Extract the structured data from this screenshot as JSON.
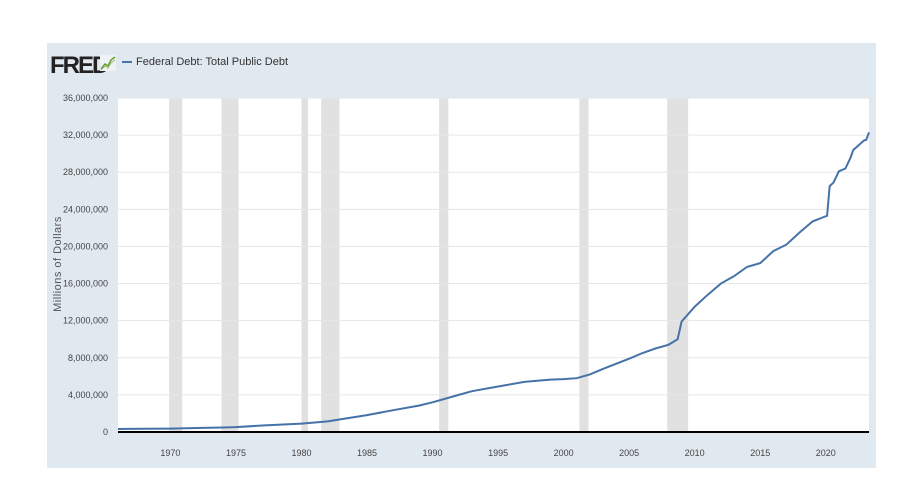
{
  "logo": "FRED",
  "chart_data": {
    "type": "line",
    "title": "Federal Debt: Total Public Debt",
    "xlabel": "",
    "ylabel": "Millions of Dollars",
    "xlim": [
      1966,
      2023.3
    ],
    "ylim": [
      0,
      36000000
    ],
    "xticks": [
      1970,
      1975,
      1980,
      1985,
      1990,
      1995,
      2000,
      2005,
      2010,
      2015,
      2020
    ],
    "yticks": [
      0,
      4000000,
      8000000,
      12000000,
      16000000,
      20000000,
      24000000,
      28000000,
      32000000,
      36000000
    ],
    "ytick_labels": [
      "0",
      "4,000,000",
      "8,000,000",
      "12,000,000",
      "16,000,000",
      "20,000,000",
      "24,000,000",
      "28,000,000",
      "32,000,000",
      "36,000,000"
    ],
    "grid": true,
    "legend": "top-left",
    "recessions": [
      [
        1969.9,
        1970.9
      ],
      [
        1973.9,
        1975.2
      ],
      [
        1980.0,
        1980.5
      ],
      [
        1981.5,
        1982.9
      ],
      [
        1990.5,
        1991.2
      ],
      [
        2001.2,
        2001.9
      ],
      [
        2007.9,
        2009.5
      ]
    ],
    "series": [
      {
        "name": "Federal Debt: Total Public Debt",
        "color": "#4572a7",
        "x": [
          1966,
          1968,
          1970,
          1972,
          1974,
          1975,
          1977,
          1980,
          1982,
          1983,
          1985,
          1987,
          1989,
          1990,
          1992,
          1993,
          1995,
          1997,
          1999,
          2000,
          2001,
          2002,
          2003,
          2005,
          2006,
          2007,
          2008,
          2008.7,
          2009,
          2010,
          2011,
          2012,
          2013,
          2014,
          2015,
          2016,
          2017,
          2018,
          2019,
          2019.9,
          2020.1,
          2020.3,
          2020.6,
          2021,
          2021.5,
          2021.9,
          2022.1,
          2022.5,
          2022.9,
          2023.1,
          2023.3
        ],
        "y": [
          320000,
          350000,
          370000,
          430000,
          480000,
          530000,
          700000,
          900000,
          1150000,
          1370000,
          1820000,
          2350000,
          2860000,
          3200000,
          4000000,
          4400000,
          4900000,
          5400000,
          5650000,
          5700000,
          5800000,
          6200000,
          6800000,
          7900000,
          8500000,
          9000000,
          9400000,
          10000000,
          11900000,
          13500000,
          14800000,
          16000000,
          16800000,
          17800000,
          18200000,
          19500000,
          20200000,
          21500000,
          22700000,
          23200000,
          23300000,
          26500000,
          26900000,
          28100000,
          28400000,
          29600000,
          30400000,
          30900000,
          31400000,
          31500000,
          32300000
        ]
      }
    ]
  }
}
